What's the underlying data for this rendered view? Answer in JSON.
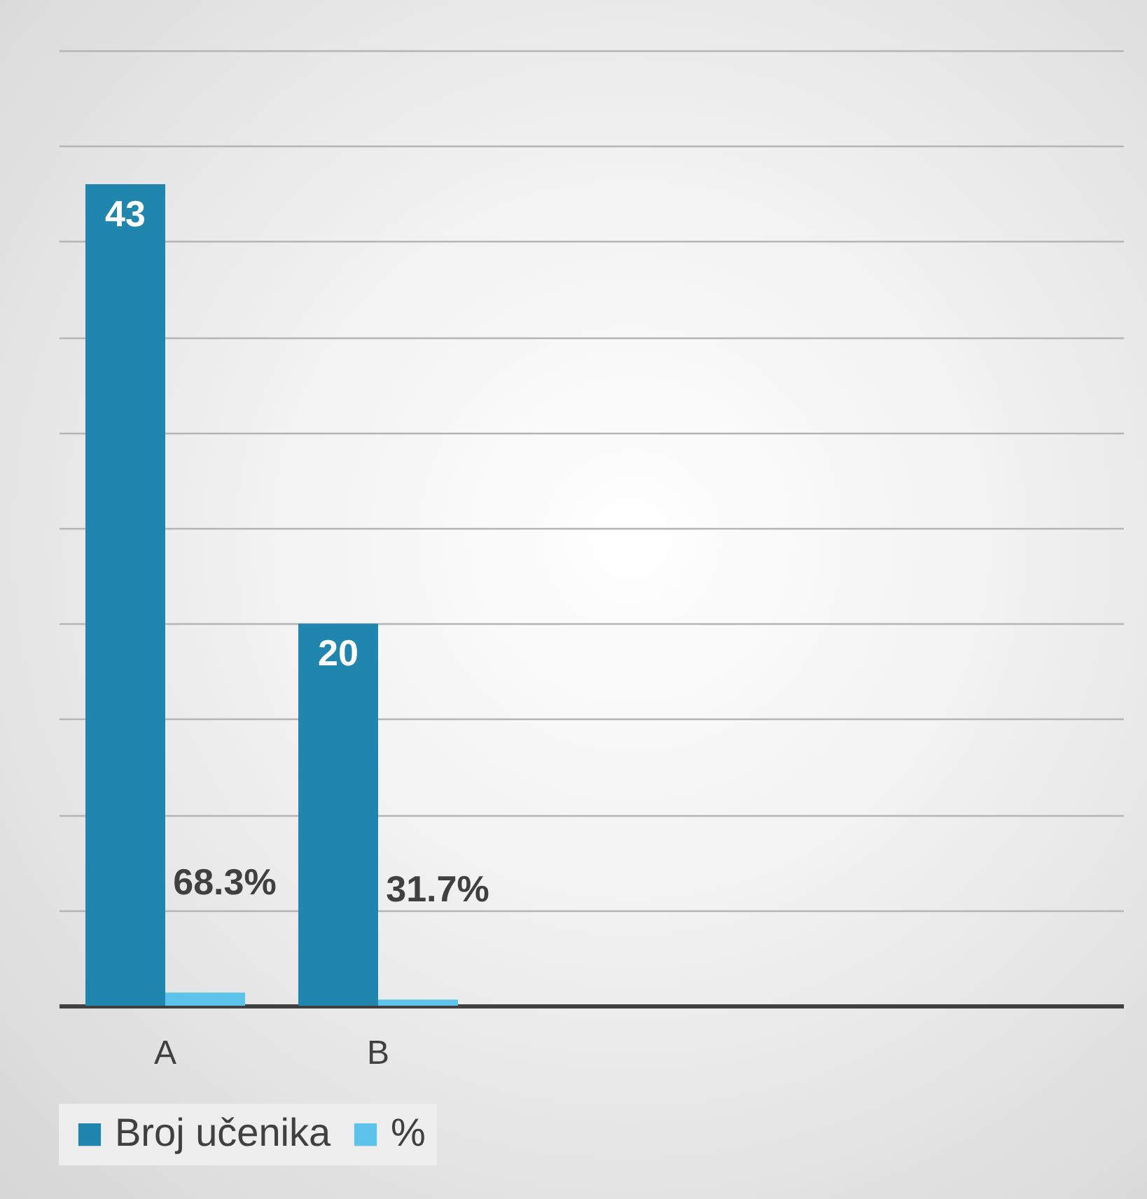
{
  "chart_data": {
    "type": "bar",
    "categories": [
      "A",
      "B",
      null,
      null,
      null
    ],
    "series": [
      {
        "name": "Broj učenika",
        "color": "#2186ae",
        "values": [
          43,
          20,
          null,
          null,
          null
        ],
        "value_labels": [
          "43",
          "20",
          null,
          null,
          null
        ]
      },
      {
        "name": "%",
        "color": "#5ec3ea",
        "values": [
          0.683,
          0.317,
          null,
          null,
          null
        ],
        "value_labels": [
          "68.3%",
          "31.7%",
          null,
          null,
          null
        ]
      }
    ],
    "ylim": [
      0,
      50
    ],
    "yticks": [
      0,
      5,
      10,
      15,
      20,
      25,
      30,
      35,
      40,
      45,
      50
    ],
    "tick_labels": "x",
    "grid": "y",
    "legend": "bottom"
  }
}
